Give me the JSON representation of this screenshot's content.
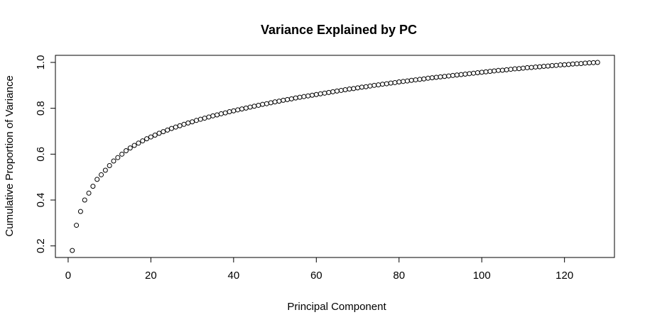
{
  "chart_data": {
    "type": "scatter",
    "title": "Variance Explained by PC",
    "xlabel": "Principal Component",
    "ylabel": "Cumulative Proportion of Variance",
    "xlim": [
      -3.08,
      132.08
    ],
    "ylim": [
      0.1495,
      1.0309
    ],
    "xticks": [
      0,
      20,
      40,
      60,
      80,
      100,
      120
    ],
    "yticks": [
      0.2,
      0.4,
      0.6,
      0.8,
      1.0
    ],
    "xtick_labels": [
      "0",
      "20",
      "40",
      "60",
      "80",
      "100",
      "120"
    ],
    "ytick_labels": [
      "0.2",
      "0.4",
      "0.6",
      "0.8",
      "1.0"
    ],
    "grid": false,
    "marker": "open-circle",
    "point_color": "#000000",
    "x": [
      1,
      2,
      3,
      4,
      5,
      6,
      7,
      8,
      9,
      10,
      11,
      12,
      13,
      14,
      15,
      16,
      17,
      18,
      19,
      20,
      21,
      22,
      23,
      24,
      25,
      26,
      27,
      28,
      29,
      30,
      31,
      32,
      33,
      34,
      35,
      36,
      37,
      38,
      39,
      40,
      41,
      42,
      43,
      44,
      45,
      46,
      47,
      48,
      49,
      50,
      51,
      52,
      53,
      54,
      55,
      56,
      57,
      58,
      59,
      60,
      61,
      62,
      63,
      64,
      65,
      66,
      67,
      68,
      69,
      70,
      71,
      72,
      73,
      74,
      75,
      76,
      77,
      78,
      79,
      80,
      81,
      82,
      83,
      84,
      85,
      86,
      87,
      88,
      89,
      90,
      91,
      92,
      93,
      94,
      95,
      96,
      97,
      98,
      99,
      100,
      101,
      102,
      103,
      104,
      105,
      106,
      107,
      108,
      109,
      110,
      111,
      112,
      113,
      114,
      115,
      116,
      117,
      118,
      119,
      120,
      121,
      122,
      123,
      124,
      125,
      126,
      127,
      128
    ],
    "y": [
      0.18,
      0.29,
      0.35,
      0.4,
      0.43,
      0.46,
      0.49,
      0.51,
      0.53,
      0.55,
      0.57,
      0.585,
      0.6,
      0.615,
      0.627,
      0.638,
      0.648,
      0.658,
      0.667,
      0.675,
      0.683,
      0.691,
      0.698,
      0.705,
      0.712,
      0.718,
      0.724,
      0.73,
      0.736,
      0.741,
      0.747,
      0.752,
      0.757,
      0.762,
      0.767,
      0.771,
      0.776,
      0.78,
      0.785,
      0.789,
      0.793,
      0.797,
      0.801,
      0.805,
      0.809,
      0.813,
      0.817,
      0.82,
      0.824,
      0.828,
      0.831,
      0.835,
      0.838,
      0.841,
      0.845,
      0.848,
      0.851,
      0.854,
      0.857,
      0.86,
      0.863,
      0.866,
      0.869,
      0.872,
      0.875,
      0.878,
      0.881,
      0.884,
      0.886,
      0.889,
      0.892,
      0.894,
      0.897,
      0.9,
      0.902,
      0.905,
      0.907,
      0.91,
      0.912,
      0.915,
      0.917,
      0.919,
      0.922,
      0.924,
      0.926,
      0.928,
      0.931,
      0.933,
      0.935,
      0.937,
      0.939,
      0.941,
      0.943,
      0.945,
      0.947,
      0.949,
      0.951,
      0.953,
      0.955,
      0.957,
      0.959,
      0.961,
      0.963,
      0.965,
      0.966,
      0.968,
      0.97,
      0.972,
      0.973,
      0.975,
      0.977,
      0.978,
      0.98,
      0.981,
      0.983,
      0.984,
      0.986,
      0.987,
      0.989,
      0.99,
      0.991,
      0.993,
      0.994,
      0.995,
      0.997,
      0.998,
      0.999,
      1.0
    ]
  }
}
